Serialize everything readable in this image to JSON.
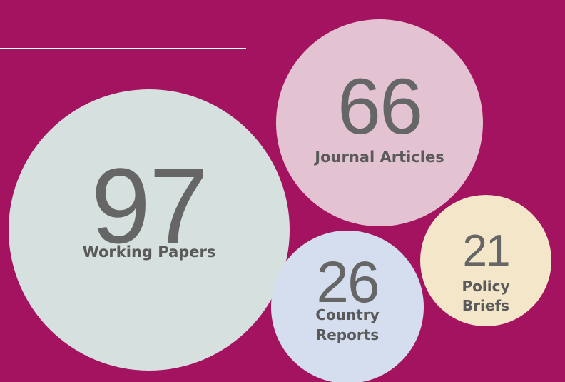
{
  "items": [
    {
      "value": 97,
      "label": [
        "Working Papers"
      ]
    },
    {
      "value": 66,
      "label": [
        "Journal Articles"
      ]
    },
    {
      "value": 26,
      "label": [
        "Country",
        "Reports"
      ]
    },
    {
      "value": 21,
      "label": [
        "Policy",
        "Briefs"
      ]
    }
  ]
}
